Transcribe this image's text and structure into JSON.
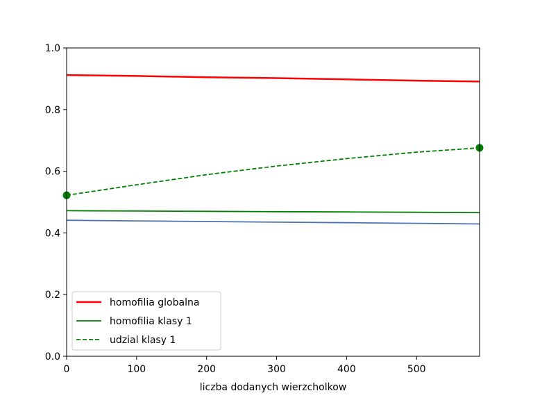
{
  "chart_data": {
    "type": "line",
    "title": "",
    "xlabel": "liczba dodanych wierzcholkow",
    "ylabel": "",
    "xlim": [
      0,
      590
    ],
    "ylim": [
      0.0,
      1.0
    ],
    "xticks": [
      0,
      100,
      200,
      300,
      400,
      500
    ],
    "xtick_labels": [
      "0",
      "100",
      "200",
      "300",
      "400",
      "500"
    ],
    "yticks": [
      0.0,
      0.2,
      0.4,
      0.6,
      0.8,
      1.0
    ],
    "ytick_labels": [
      "0.0",
      "0.2",
      "0.4",
      "0.6",
      "0.8",
      "1.0"
    ],
    "grid": false,
    "legend_position": "lower-left",
    "series": [
      {
        "name": "homofilia globalna",
        "color": "#ff0000",
        "style": "solid",
        "in_legend": true,
        "x": [
          0,
          100,
          200,
          300,
          400,
          500,
          590
        ],
        "y": [
          0.912,
          0.909,
          0.905,
          0.902,
          0.898,
          0.894,
          0.891
        ]
      },
      {
        "name": "homofilia klasy 1",
        "color": "#008000",
        "style": "solid",
        "in_legend": true,
        "x": [
          0,
          100,
          200,
          300,
          400,
          500,
          590
        ],
        "y": [
          0.472,
          0.471,
          0.47,
          0.469,
          0.468,
          0.467,
          0.466
        ]
      },
      {
        "name": "udzial klasy 1",
        "color": "#008000",
        "style": "dashed",
        "in_legend": true,
        "markers_at_ends": true,
        "x": [
          0,
          100,
          200,
          300,
          400,
          500,
          590
        ],
        "y": [
          0.522,
          0.556,
          0.589,
          0.617,
          0.641,
          0.662,
          0.676
        ]
      },
      {
        "name": "",
        "color": "#4c72b0",
        "style": "solid",
        "in_legend": false,
        "x": [
          0,
          100,
          200,
          300,
          400,
          500,
          590
        ],
        "y": [
          0.441,
          0.439,
          0.437,
          0.435,
          0.433,
          0.431,
          0.429
        ]
      }
    ]
  }
}
